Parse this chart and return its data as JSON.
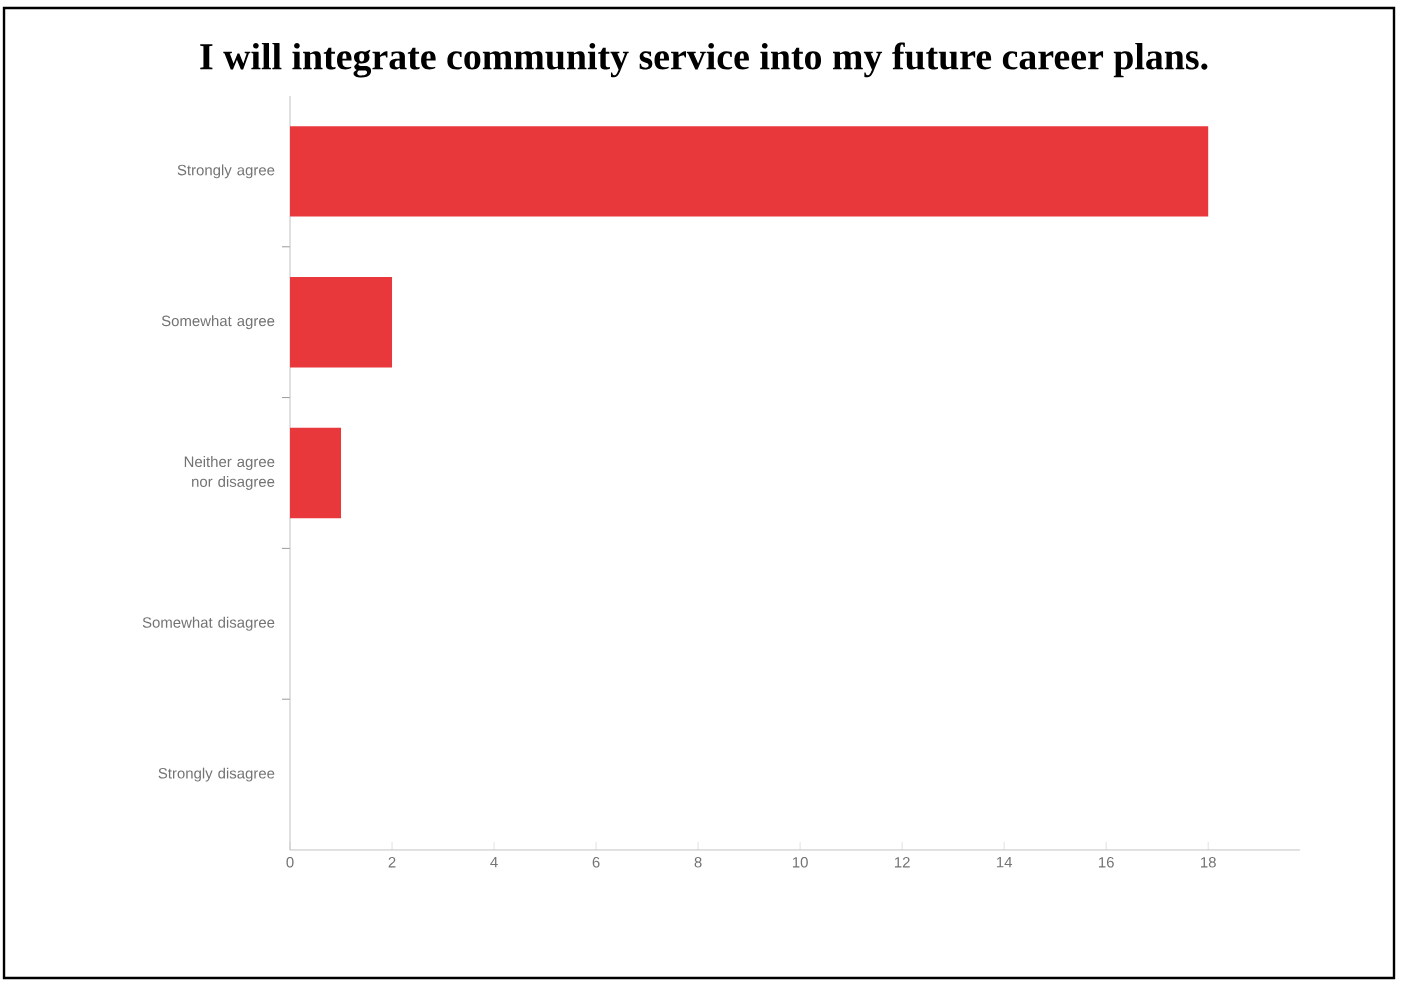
{
  "chart_data": {
    "type": "bar",
    "orientation": "horizontal",
    "title": "I will integrate community service into my future career plans.",
    "categories": [
      "Strongly agree",
      "Somewhat agree",
      "Neither agree nor disagree",
      "Somewhat disagree",
      "Strongly disagree"
    ],
    "values": [
      18,
      2,
      1,
      0,
      0
    ],
    "color": "#e8383b",
    "xlim": [
      0,
      19.8
    ],
    "xticks": [
      0,
      2,
      4,
      6,
      8,
      10,
      12,
      14,
      16,
      18
    ]
  }
}
